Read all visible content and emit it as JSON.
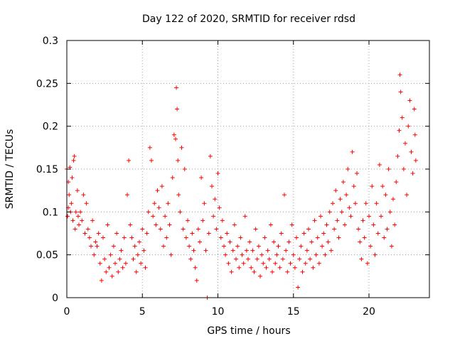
{
  "chart_data": {
    "type": "scatter",
    "title": "Day 122 of 2020, SRMTID for receiver rdsd",
    "xlabel": "GPS time / hours",
    "ylabel": "SRMTID / TECUs",
    "xlim": [
      0,
      24
    ],
    "ylim": [
      0,
      0.3
    ],
    "grid": true,
    "xticks": [
      0,
      5,
      10,
      15,
      20
    ],
    "xtick_labels": [
      "0",
      "5",
      "10",
      "15",
      "20"
    ],
    "yticks": [
      0,
      0.05,
      0.1,
      0.15,
      0.2,
      0.25,
      0.3
    ],
    "ytick_labels": [
      "0",
      "0.05",
      "0.1",
      "0.15",
      "0.2",
      "0.25",
      "0.3"
    ],
    "marker": "+",
    "color": "#ff0000",
    "series": [
      {
        "name": "SRMTID",
        "points": [
          [
            0.0,
            0.15
          ],
          [
            0.05,
            0.095
          ],
          [
            0.1,
            0.135
          ],
          [
            0.1,
            0.105
          ],
          [
            0.15,
            0.12
          ],
          [
            0.2,
            0.152
          ],
          [
            0.25,
            0.1
          ],
          [
            0.3,
            0.11
          ],
          [
            0.35,
            0.14
          ],
          [
            0.4,
            0.09
          ],
          [
            0.45,
            0.16
          ],
          [
            0.5,
            0.165
          ],
          [
            0.55,
            0.08
          ],
          [
            0.6,
            0.1
          ],
          [
            0.7,
            0.125
          ],
          [
            0.75,
            0.095
          ],
          [
            0.8,
            0.085
          ],
          [
            0.9,
            0.1
          ],
          [
            1.0,
            0.09
          ],
          [
            1.1,
            0.12
          ],
          [
            1.2,
            0.075
          ],
          [
            1.3,
            0.11
          ],
          [
            1.4,
            0.08
          ],
          [
            1.5,
            0.07
          ],
          [
            1.6,
            0.06
          ],
          [
            1.7,
            0.09
          ],
          [
            1.8,
            0.05
          ],
          [
            1.9,
            0.065
          ],
          [
            2.0,
            0.06
          ],
          [
            2.1,
            0.075
          ],
          [
            2.2,
            0.04
          ],
          [
            2.3,
            0.02
          ],
          [
            2.4,
            0.07
          ],
          [
            2.5,
            0.045
          ],
          [
            2.6,
            0.03
          ],
          [
            2.7,
            0.085
          ],
          [
            2.8,
            0.035
          ],
          [
            2.9,
            0.05
          ],
          [
            3.0,
            0.025
          ],
          [
            3.1,
            0.06
          ],
          [
            3.2,
            0.04
          ],
          [
            3.3,
            0.075
          ],
          [
            3.4,
            0.03
          ],
          [
            3.5,
            0.045
          ],
          [
            3.6,
            0.055
          ],
          [
            3.7,
            0.035
          ],
          [
            3.8,
            0.07
          ],
          [
            3.9,
            0.04
          ],
          [
            4.0,
            0.12
          ],
          [
            4.1,
            0.16
          ],
          [
            4.2,
            0.085
          ],
          [
            4.3,
            0.07
          ],
          [
            4.4,
            0.045
          ],
          [
            4.5,
            0.06
          ],
          [
            4.6,
            0.03
          ],
          [
            4.7,
            0.05
          ],
          [
            4.8,
            0.065
          ],
          [
            4.9,
            0.04
          ],
          [
            5.0,
            0.08
          ],
          [
            5.1,
            0.055
          ],
          [
            5.2,
            0.035
          ],
          [
            5.3,
            0.075
          ],
          [
            5.4,
            0.1
          ],
          [
            5.5,
            0.175
          ],
          [
            5.6,
            0.16
          ],
          [
            5.7,
            0.095
          ],
          [
            5.8,
            0.11
          ],
          [
            5.9,
            0.085
          ],
          [
            6.0,
            0.125
          ],
          [
            6.1,
            0.105
          ],
          [
            6.2,
            0.08
          ],
          [
            6.3,
            0.13
          ],
          [
            6.4,
            0.06
          ],
          [
            6.5,
            0.095
          ],
          [
            6.6,
            0.07
          ],
          [
            6.7,
            0.11
          ],
          [
            6.8,
            0.085
          ],
          [
            6.9,
            0.05
          ],
          [
            7.0,
            0.14
          ],
          [
            7.1,
            0.19
          ],
          [
            7.2,
            0.185
          ],
          [
            7.25,
            0.245
          ],
          [
            7.3,
            0.22
          ],
          [
            7.35,
            0.16
          ],
          [
            7.4,
            0.12
          ],
          [
            7.5,
            0.1
          ],
          [
            7.6,
            0.175
          ],
          [
            7.7,
            0.08
          ],
          [
            7.8,
            0.15
          ],
          [
            7.9,
            0.07
          ],
          [
            8.0,
            0.09
          ],
          [
            8.1,
            0.06
          ],
          [
            8.2,
            0.045
          ],
          [
            8.3,
            0.075
          ],
          [
            8.4,
            0.055
          ],
          [
            8.5,
            0.035
          ],
          [
            8.6,
            0.02
          ],
          [
            8.7,
            0.08
          ],
          [
            8.8,
            0.065
          ],
          [
            8.9,
            0.14
          ],
          [
            9.0,
            0.09
          ],
          [
            9.1,
            0.11
          ],
          [
            9.2,
            0.055
          ],
          [
            9.3,
            0.0
          ],
          [
            9.4,
            0.075
          ],
          [
            9.5,
            0.165
          ],
          [
            9.6,
            0.13
          ],
          [
            9.7,
            0.095
          ],
          [
            9.8,
            0.115
          ],
          [
            9.9,
            0.08
          ],
          [
            10.0,
            0.145
          ],
          [
            10.1,
            0.105
          ],
          [
            10.2,
            0.07
          ],
          [
            10.3,
            0.09
          ],
          [
            10.4,
            0.06
          ],
          [
            10.5,
            0.05
          ],
          [
            10.6,
            0.075
          ],
          [
            10.7,
            0.04
          ],
          [
            10.8,
            0.065
          ],
          [
            10.9,
            0.03
          ],
          [
            11.0,
            0.055
          ],
          [
            11.1,
            0.085
          ],
          [
            11.2,
            0.045
          ],
          [
            11.3,
            0.06
          ],
          [
            11.4,
            0.035
          ],
          [
            11.5,
            0.07
          ],
          [
            11.6,
            0.05
          ],
          [
            11.7,
            0.04
          ],
          [
            11.8,
            0.095
          ],
          [
            11.9,
            0.055
          ],
          [
            12.0,
            0.045
          ],
          [
            12.1,
            0.065
          ],
          [
            12.2,
            0.035
          ],
          [
            12.3,
            0.055
          ],
          [
            12.4,
            0.03
          ],
          [
            12.5,
            0.08
          ],
          [
            12.6,
            0.045
          ],
          [
            12.7,
            0.06
          ],
          [
            12.8,
            0.025
          ],
          [
            12.9,
            0.05
          ],
          [
            13.0,
            0.04
          ],
          [
            13.1,
            0.07
          ],
          [
            13.2,
            0.035
          ],
          [
            13.3,
            0.055
          ],
          [
            13.4,
            0.045
          ],
          [
            13.5,
            0.085
          ],
          [
            13.6,
            0.03
          ],
          [
            13.7,
            0.065
          ],
          [
            13.8,
            0.04
          ],
          [
            13.9,
            0.05
          ],
          [
            14.0,
            0.06
          ],
          [
            14.1,
            0.035
          ],
          [
            14.2,
            0.075
          ],
          [
            14.3,
            0.045
          ],
          [
            14.4,
            0.12
          ],
          [
            14.5,
            0.055
          ],
          [
            14.6,
            0.03
          ],
          [
            14.7,
            0.065
          ],
          [
            14.8,
            0.04
          ],
          [
            14.9,
            0.085
          ],
          [
            15.0,
            0.05
          ],
          [
            15.1,
            0.035
          ],
          [
            15.2,
            0.07
          ],
          [
            15.3,
            0.012
          ],
          [
            15.4,
            0.045
          ],
          [
            15.5,
            0.06
          ],
          [
            15.6,
            0.03
          ],
          [
            15.7,
            0.075
          ],
          [
            15.8,
            0.04
          ],
          [
            15.9,
            0.055
          ],
          [
            16.0,
            0.08
          ],
          [
            16.1,
            0.045
          ],
          [
            16.2,
            0.065
          ],
          [
            16.3,
            0.035
          ],
          [
            16.4,
            0.09
          ],
          [
            16.5,
            0.05
          ],
          [
            16.6,
            0.07
          ],
          [
            16.7,
            0.04
          ],
          [
            16.8,
            0.095
          ],
          [
            16.9,
            0.06
          ],
          [
            17.0,
            0.075
          ],
          [
            17.1,
            0.05
          ],
          [
            17.2,
            0.085
          ],
          [
            17.3,
            0.065
          ],
          [
            17.4,
            0.1
          ],
          [
            17.5,
            0.055
          ],
          [
            17.6,
            0.11
          ],
          [
            17.7,
            0.08
          ],
          [
            17.8,
            0.125
          ],
          [
            17.9,
            0.09
          ],
          [
            18.0,
            0.07
          ],
          [
            18.1,
            0.115
          ],
          [
            18.2,
            0.1
          ],
          [
            18.3,
            0.135
          ],
          [
            18.4,
            0.085
          ],
          [
            18.5,
            0.12
          ],
          [
            18.6,
            0.15
          ],
          [
            18.7,
            0.105
          ],
          [
            18.8,
            0.095
          ],
          [
            18.9,
            0.17
          ],
          [
            19.0,
            0.13
          ],
          [
            19.1,
            0.11
          ],
          [
            19.2,
            0.145
          ],
          [
            19.3,
            0.08
          ],
          [
            19.4,
            0.065
          ],
          [
            19.5,
            0.045
          ],
          [
            19.6,
            0.09
          ],
          [
            19.7,
            0.07
          ],
          [
            19.8,
            0.11
          ],
          [
            19.9,
            0.04
          ],
          [
            20.0,
            0.095
          ],
          [
            20.1,
            0.06
          ],
          [
            20.2,
            0.13
          ],
          [
            20.3,
            0.085
          ],
          [
            20.4,
            0.05
          ],
          [
            20.5,
            0.11
          ],
          [
            20.6,
            0.075
          ],
          [
            20.7,
            0.155
          ],
          [
            20.8,
            0.095
          ],
          [
            20.9,
            0.13
          ],
          [
            21.0,
            0.07
          ],
          [
            21.1,
            0.12
          ],
          [
            21.2,
            0.08
          ],
          [
            21.3,
            0.15
          ],
          [
            21.4,
            0.1
          ],
          [
            21.5,
            0.06
          ],
          [
            21.6,
            0.115
          ],
          [
            21.7,
            0.085
          ],
          [
            21.8,
            0.135
          ],
          [
            21.9,
            0.165
          ],
          [
            22.0,
            0.195
          ],
          [
            22.05,
            0.26
          ],
          [
            22.1,
            0.24
          ],
          [
            22.2,
            0.21
          ],
          [
            22.3,
            0.15
          ],
          [
            22.4,
            0.18
          ],
          [
            22.5,
            0.12
          ],
          [
            22.6,
            0.2
          ],
          [
            22.7,
            0.23
          ],
          [
            22.8,
            0.17
          ],
          [
            22.9,
            0.145
          ],
          [
            23.0,
            0.22
          ],
          [
            23.05,
            0.19
          ],
          [
            23.1,
            0.16
          ]
        ]
      }
    ]
  }
}
